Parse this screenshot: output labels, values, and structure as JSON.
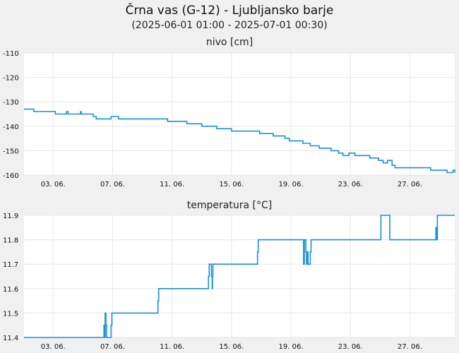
{
  "title": "Črna vas (G-12) - Ljubljansko barje",
  "subtitle": "(2025-06-01 01:00 - 2025-07-01 00:30)",
  "series_color": "#1a8fd6",
  "chart_data": [
    {
      "type": "line",
      "title": "nivo [cm]",
      "x_ticks": [
        "03. 06.",
        "07. 06.",
        "11. 06.",
        "15. 06.",
        "19. 06.",
        "23. 06.",
        "27. 06."
      ],
      "x_tick_days": [
        3,
        7,
        11,
        15,
        19,
        23,
        27
      ],
      "xlim": [
        1.04,
        30.02
      ],
      "ylim": [
        -160,
        -110
      ],
      "y_ticks": [
        "-110",
        "-120",
        "-130",
        "-140",
        "-150",
        "-160"
      ],
      "y_tick_values": [
        -110,
        -120,
        -130,
        -140,
        -150,
        -160
      ],
      "grid": true,
      "x": [
        1.04,
        1.6,
        1.7,
        3.1,
        3.15,
        3.8,
        3.9,
        4.0,
        4.8,
        4.85,
        4.9,
        5.6,
        5.7,
        5.9,
        6.8,
        6.9,
        7.2,
        7.4,
        7.6,
        10.6,
        10.7,
        11.2,
        11.9,
        12.0,
        12.3,
        12.8,
        13.0,
        13.1,
        13.6,
        14.0,
        14.8,
        15.0,
        15.9,
        16.1,
        16.9,
        17.3,
        17.8,
        18.1,
        18.6,
        18.9,
        19.3,
        19.8,
        20.0,
        20.3,
        20.5,
        20.9,
        21.4,
        21.7,
        22.0,
        22.2,
        22.5,
        22.9,
        23.3,
        23.6,
        24.0,
        24.3,
        24.6,
        24.9,
        25.2,
        25.5,
        25.8,
        26.0,
        26.1,
        26.4,
        26.7,
        27.0,
        27.6,
        28.4,
        29.2,
        29.5,
        29.9,
        30.02
      ],
      "y": [
        -133,
        -133,
        -134,
        -134,
        -135,
        -135,
        -134,
        -135,
        -135,
        -134,
        -135,
        -135,
        -136,
        -137,
        -137,
        -136,
        -136,
        -137,
        -137,
        -137,
        -138,
        -138,
        -138,
        -139,
        -139,
        -139,
        -140,
        -140,
        -140,
        -141,
        -141,
        -142,
        -142,
        -142,
        -143,
        -143,
        -144,
        -144,
        -145,
        -146,
        -146,
        -147,
        -147,
        -148,
        -148,
        -149,
        -149,
        -150,
        -150,
        -151,
        -152,
        -151,
        -152,
        -152,
        -152,
        -153,
        -153,
        -154,
        -155,
        -154,
        -156,
        -157,
        -157,
        -157,
        -157,
        -157,
        -157,
        -158,
        -158,
        -159,
        -158,
        -159
      ]
    },
    {
      "type": "line",
      "title": "temperatura [°C]",
      "x_ticks": [
        "03. 06.",
        "07. 06.",
        "11. 06.",
        "15. 06.",
        "19. 06.",
        "23. 06.",
        "27. 06."
      ],
      "x_tick_days": [
        3,
        7,
        11,
        15,
        19,
        23,
        27
      ],
      "xlim": [
        1.04,
        30.02
      ],
      "ylim": [
        11.4,
        11.9
      ],
      "y_ticks": [
        "11.9",
        "11.8",
        "11.7",
        "11.6",
        "11.5",
        "11.4"
      ],
      "y_tick_values": [
        11.9,
        11.8,
        11.7,
        11.6,
        11.5,
        11.4
      ],
      "grid": true,
      "x": [
        1.04,
        6.4,
        6.42,
        6.45,
        6.5,
        6.55,
        6.6,
        6.85,
        6.9,
        6.95,
        10.0,
        10.05,
        10.1,
        10.15,
        13.4,
        13.45,
        13.5,
        13.6,
        13.65,
        13.7,
        13.72,
        13.75,
        16.7,
        16.75,
        16.8,
        19.8,
        19.85,
        19.9,
        20.0,
        20.05,
        20.1,
        20.15,
        20.2,
        20.3,
        20.35,
        25.0,
        25.05,
        25.6,
        25.65,
        28.7,
        28.75,
        28.8,
        28.85,
        29.1,
        30.02
      ],
      "y": [
        11.4,
        11.4,
        11.45,
        11.4,
        11.5,
        11.45,
        11.4,
        11.4,
        11.45,
        11.5,
        11.5,
        11.55,
        11.6,
        11.6,
        11.6,
        11.65,
        11.7,
        11.7,
        11.65,
        11.6,
        11.65,
        11.7,
        11.7,
        11.75,
        11.8,
        11.8,
        11.7,
        11.8,
        11.75,
        11.7,
        11.75,
        11.7,
        11.7,
        11.75,
        11.8,
        11.8,
        11.9,
        11.9,
        11.8,
        11.8,
        11.85,
        11.8,
        11.9,
        11.9,
        11.9
      ]
    }
  ]
}
